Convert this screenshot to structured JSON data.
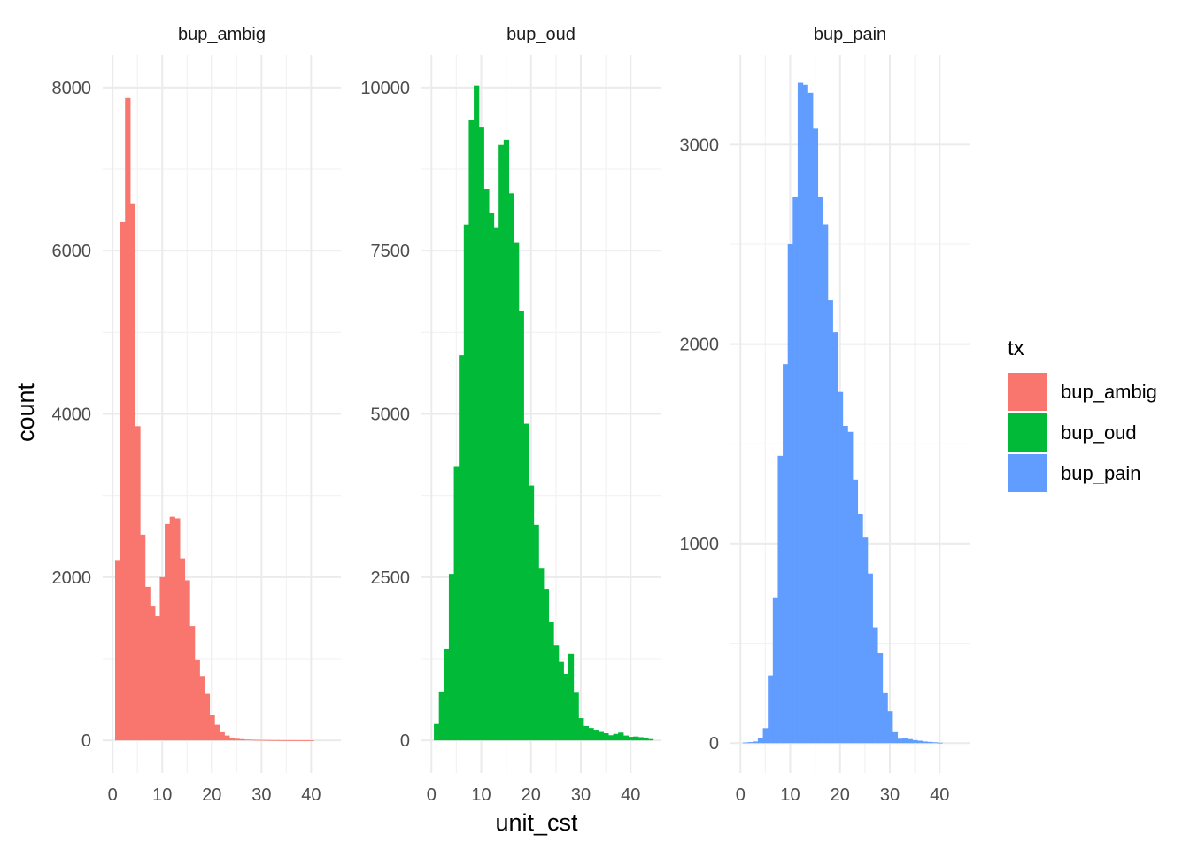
{
  "chart_data": {
    "type": "bar",
    "subtype": "faceted-histogram",
    "xlabel": "unit_cst",
    "ylabel": "count",
    "legend": {
      "title": "tx",
      "position": "right",
      "entries": [
        {
          "label": "bup_ambig",
          "color": "#F8766D"
        },
        {
          "label": "bup_oud",
          "color": "#00BA38"
        },
        {
          "label": "bup_pain",
          "color": "#619CFF"
        }
      ]
    },
    "grid": true,
    "xlim": [
      -2,
      46
    ],
    "x_ticks": [
      0,
      10,
      20,
      30,
      40
    ],
    "bin_width": 1,
    "facets": [
      {
        "name": "bup_ambig",
        "color": "#F8766D",
        "ylim": [
          -400,
          8400
        ],
        "y_ticks": [
          0,
          2000,
          4000,
          6000,
          8000
        ],
        "bin_starts": [
          0.5,
          1.5,
          2.5,
          3.5,
          4.5,
          5.5,
          6.5,
          7.5,
          8.5,
          9.5,
          10.5,
          11.5,
          12.5,
          13.5,
          14.5,
          15.5,
          16.5,
          17.5,
          18.5,
          19.5,
          20.5,
          21.5,
          22.5,
          23.5,
          24.5,
          25.5,
          26.5,
          27.5,
          28.5,
          29.5,
          30.5,
          31.5,
          32.5,
          33.5,
          34.5,
          35.5,
          36.5,
          37.5,
          38.5,
          39.5,
          40.5,
          41.5,
          42.5,
          43.5,
          44.5
        ],
        "values": [
          2200,
          6350,
          7870,
          6580,
          3850,
          2520,
          1880,
          1650,
          1520,
          2000,
          2650,
          2740,
          2720,
          2230,
          1960,
          1400,
          990,
          780,
          570,
          310,
          190,
          100,
          60,
          30,
          20,
          15,
          10,
          8,
          6,
          5,
          4,
          3,
          3,
          2,
          2,
          2,
          1,
          1,
          1,
          1,
          0,
          0,
          0,
          0,
          0
        ]
      },
      {
        "name": "bup_oud",
        "color": "#00BA38",
        "ylim": [
          -500,
          10500
        ],
        "y_ticks": [
          0,
          2500,
          5000,
          7500,
          10000
        ],
        "bin_starts": [
          0.5,
          1.5,
          2.5,
          3.5,
          4.5,
          5.5,
          6.5,
          7.5,
          8.5,
          9.5,
          10.5,
          11.5,
          12.5,
          13.5,
          14.5,
          15.5,
          16.5,
          17.5,
          18.5,
          19.5,
          20.5,
          21.5,
          22.5,
          23.5,
          24.5,
          25.5,
          26.5,
          27.5,
          28.5,
          29.5,
          30.5,
          31.5,
          32.5,
          33.5,
          34.5,
          35.5,
          36.5,
          37.5,
          38.5,
          39.5,
          40.5,
          41.5,
          42.5,
          43.5,
          44.5
        ],
        "values": [
          250,
          750,
          1400,
          2550,
          4200,
          5900,
          7900,
          9500,
          10030,
          9400,
          8450,
          8080,
          7860,
          9120,
          9200,
          8380,
          7630,
          6580,
          4850,
          3900,
          3300,
          2630,
          2320,
          1820,
          1450,
          1200,
          1020,
          1320,
          730,
          340,
          220,
          190,
          150,
          130,
          110,
          80,
          100,
          120,
          75,
          55,
          60,
          50,
          40,
          20,
          0
        ]
      },
      {
        "name": "bup_pain",
        "color": "#619CFF",
        "ylim": [
          -150,
          3450
        ],
        "y_ticks": [
          0,
          1000,
          2000,
          3000
        ],
        "bin_starts": [
          0.5,
          1.5,
          2.5,
          3.5,
          4.5,
          5.5,
          6.5,
          7.5,
          8.5,
          9.5,
          10.5,
          11.5,
          12.5,
          13.5,
          14.5,
          15.5,
          16.5,
          17.5,
          18.5,
          19.5,
          20.5,
          21.5,
          22.5,
          23.5,
          24.5,
          25.5,
          26.5,
          27.5,
          28.5,
          29.5,
          30.5,
          31.5,
          32.5,
          33.5,
          34.5,
          35.5,
          36.5,
          37.5,
          38.5,
          39.5,
          40.5,
          41.5,
          42.5,
          43.5,
          44.5
        ],
        "values": [
          3,
          5,
          8,
          25,
          75,
          340,
          730,
          1440,
          1900,
          2500,
          2740,
          3310,
          3300,
          3260,
          3080,
          2740,
          2600,
          2220,
          2060,
          1760,
          1590,
          1560,
          1320,
          1150,
          1030,
          850,
          580,
          450,
          250,
          160,
          55,
          22,
          24,
          20,
          15,
          12,
          8,
          6,
          4,
          2,
          0,
          0,
          0,
          0,
          0
        ]
      }
    ]
  }
}
